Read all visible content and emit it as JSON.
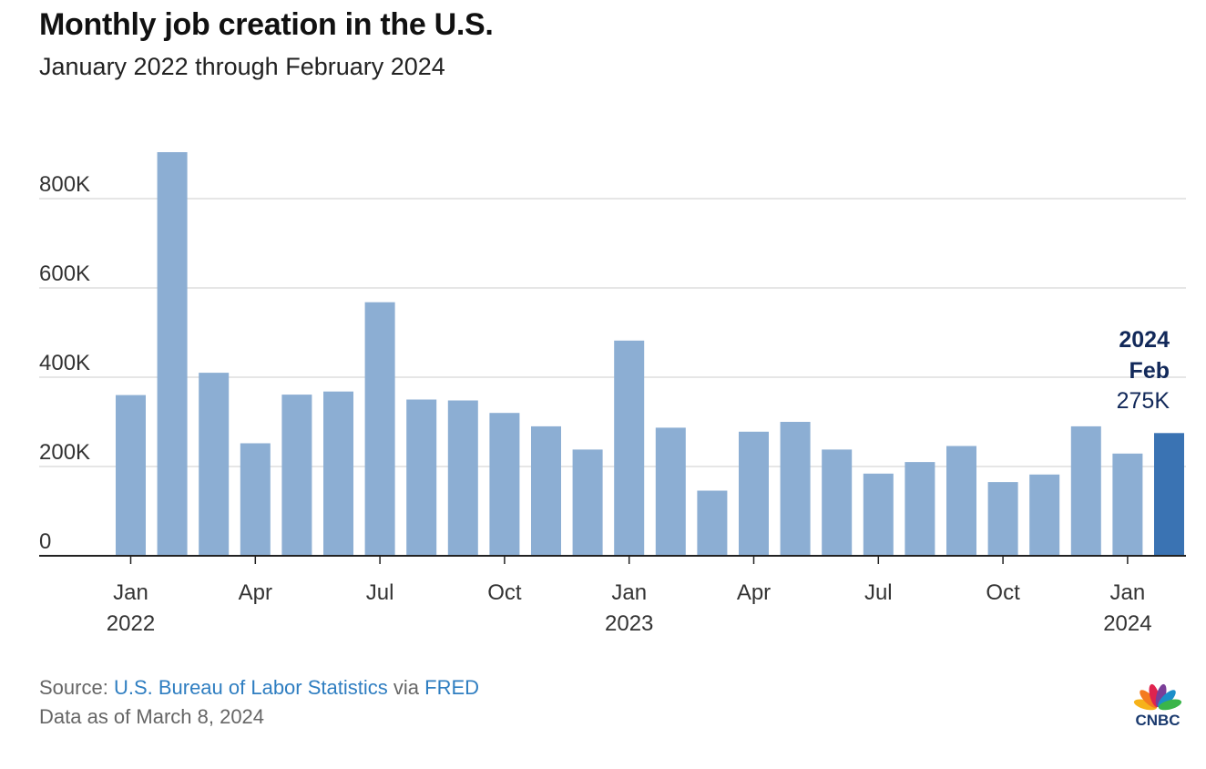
{
  "header": {
    "title": "Monthly job creation in the U.S.",
    "subtitle": "January 2022 through February 2024"
  },
  "footer": {
    "source_prefix": "Source: ",
    "source_name": "U.S. Bureau of Labor Statistics",
    "source_via": " via ",
    "source_platform": "FRED",
    "data_as_of": "Data as of March 8, 2024"
  },
  "logo": {
    "text": "CNBC",
    "petal_colors": [
      "#f6b21a",
      "#f47b20",
      "#e0234e",
      "#7a3e98",
      "#1b8ec9",
      "#3ab54a"
    ]
  },
  "colors": {
    "bar": "#8caed3",
    "highlight_bar": "#3a73b3",
    "annotation": "#12295a",
    "grid": "#cccccc",
    "axis": "#222222",
    "tick_text": "#333333"
  },
  "chart_data": {
    "type": "bar",
    "title": "Monthly job creation in the U.S.",
    "subtitle": "January 2022 through February 2024",
    "xlabel": "",
    "ylabel": "",
    "ylim": [
      0,
      900000
    ],
    "y_ticks": [
      0,
      200000,
      400000,
      600000,
      800000
    ],
    "y_tick_labels": [
      "0",
      "200K",
      "400K",
      "600K",
      "800K"
    ],
    "grid": "horizontal",
    "legend": "none",
    "categories": [
      "2022-01",
      "2022-02",
      "2022-03",
      "2022-04",
      "2022-05",
      "2022-06",
      "2022-07",
      "2022-08",
      "2022-09",
      "2022-10",
      "2022-11",
      "2022-12",
      "2023-01",
      "2023-02",
      "2023-03",
      "2023-04",
      "2023-05",
      "2023-06",
      "2023-07",
      "2023-08",
      "2023-09",
      "2023-10",
      "2023-11",
      "2023-12",
      "2024-01",
      "2024-02"
    ],
    "values": [
      360000,
      904000,
      410000,
      252000,
      361000,
      368000,
      568000,
      350000,
      348000,
      320000,
      290000,
      238000,
      482000,
      287000,
      146000,
      278000,
      300000,
      238000,
      184000,
      210000,
      246000,
      165000,
      182000,
      290000,
      229000,
      275000
    ],
    "x_tick_labels": [
      {
        "index": 0,
        "month": "Jan",
        "year": "2022"
      },
      {
        "index": 3,
        "month": "Apr",
        "year": ""
      },
      {
        "index": 6,
        "month": "Jul",
        "year": ""
      },
      {
        "index": 9,
        "month": "Oct",
        "year": ""
      },
      {
        "index": 12,
        "month": "Jan",
        "year": "2023"
      },
      {
        "index": 15,
        "month": "Apr",
        "year": ""
      },
      {
        "index": 18,
        "month": "Jul",
        "year": ""
      },
      {
        "index": 21,
        "month": "Oct",
        "year": ""
      },
      {
        "index": 24,
        "month": "Jan",
        "year": "2024"
      }
    ],
    "highlight": {
      "index": 25,
      "year": "2024",
      "month": "Feb",
      "value_label": "275K"
    }
  }
}
